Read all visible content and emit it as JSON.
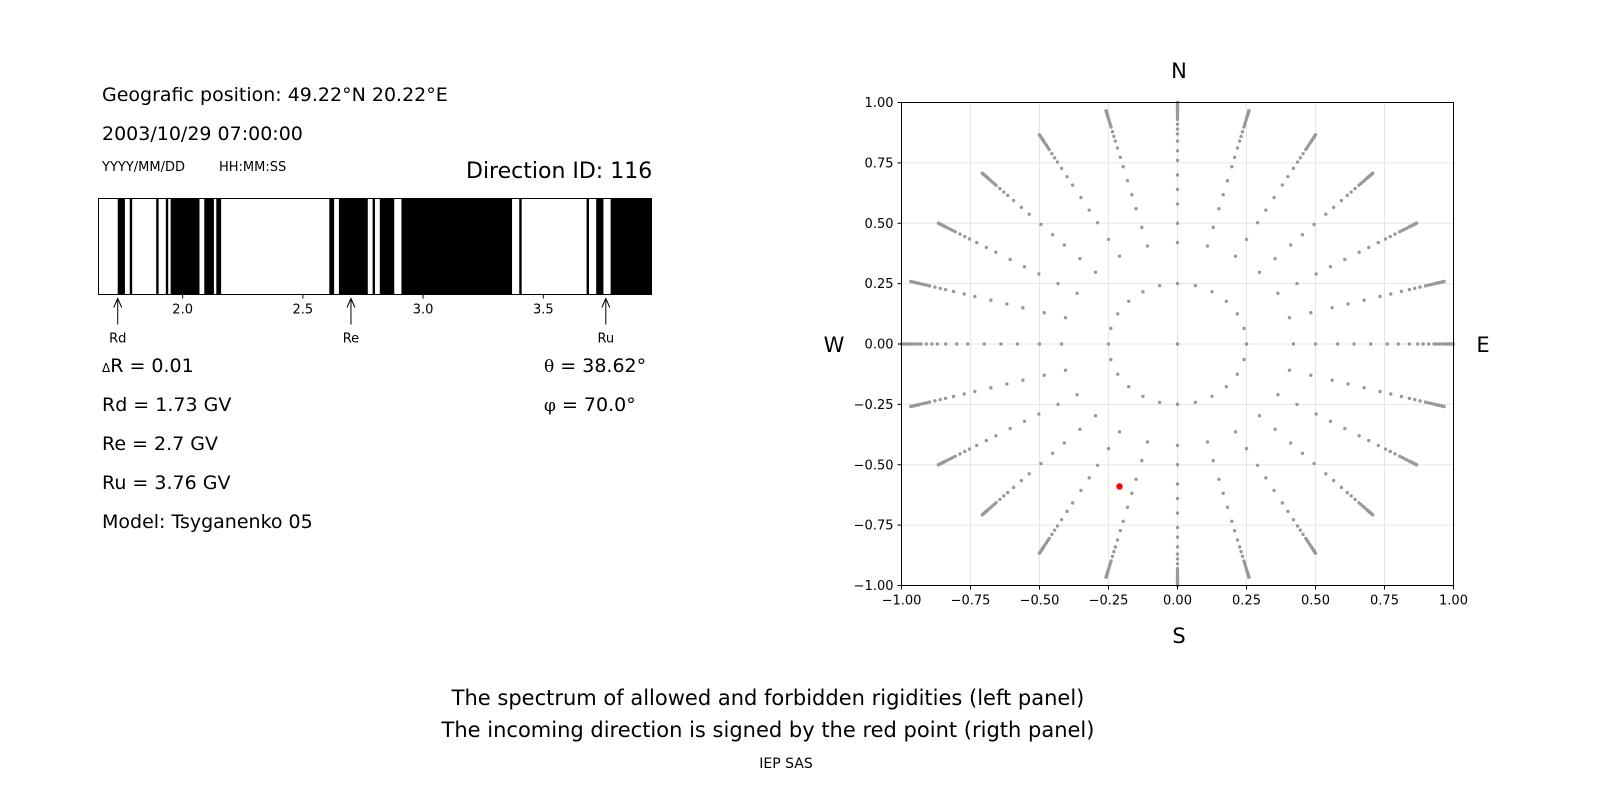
{
  "left_panel": {
    "position_line": "Geografic position: 49.22°N 20.22°E",
    "datetime": "2003/10/29 07:00:00",
    "date_format_label": "YYYY/MM/DD",
    "time_format_label": "HH:MM:SS",
    "direction_id": "Direction ID: 116",
    "delta_r_symbol": "Δ",
    "delta_r": "R = 0.01",
    "rd": "Rd = 1.73 GV",
    "re": "Re = 2.7 GV",
    "ru": "Ru = 3.76 GV",
    "model": "Model: Tsyganenko 05",
    "theta_symbol": "θ",
    "theta": "= 38.62°",
    "phi_symbol": "φ",
    "phi": "= 70.0°"
  },
  "footer": {
    "line1": "The spectrum of allowed and forbidden rigidities (left panel)",
    "line2": "The incoming direction is signed by the red point (rigth panel)",
    "credit": "IEP SAS"
  },
  "chart_data": [
    {
      "type": "spectrum",
      "xlim": [
        1.65,
        3.95
      ],
      "xticks": [
        "2.0",
        "2.5",
        "3.0",
        "3.5"
      ],
      "tick_values": [
        2.0,
        2.5,
        3.0,
        3.5
      ],
      "forbidden_intervals": [
        [
          1.73,
          1.76
        ],
        [
          1.78,
          1.79
        ],
        [
          1.89,
          1.9
        ],
        [
          1.93,
          1.94
        ],
        [
          1.95,
          2.07
        ],
        [
          2.09,
          2.13
        ],
        [
          2.14,
          2.16
        ],
        [
          2.61,
          2.63
        ],
        [
          2.65,
          2.77
        ],
        [
          2.79,
          2.8
        ],
        [
          2.82,
          2.88
        ],
        [
          2.91,
          3.37
        ],
        [
          3.4,
          3.41
        ],
        [
          3.68,
          3.69
        ],
        [
          3.72,
          3.75
        ],
        [
          3.78,
          3.95
        ]
      ],
      "markers": [
        {
          "label": "Rd",
          "value": 1.73
        },
        {
          "label": "Re",
          "value": 2.7
        },
        {
          "label": "Ru",
          "value": 3.76
        }
      ],
      "colors": {
        "forbidden": "#000000",
        "allowed": "#ffffff"
      }
    },
    {
      "type": "scatter",
      "xlim": [
        -1.0,
        1.0
      ],
      "ylim": [
        -1.0,
        1.0
      ],
      "xticks": [
        "−1.00",
        "−0.75",
        "−0.50",
        "−0.25",
        "0.00",
        "0.25",
        "0.50",
        "0.75",
        "1.00"
      ],
      "yticks": [
        "1.00",
        "0.75",
        "0.50",
        "0.25",
        "0.00",
        "−0.25",
        "−0.50",
        "−0.75",
        "−1.00"
      ],
      "tick_values": [
        -1.0,
        -0.75,
        -0.5,
        -0.25,
        0.0,
        0.25,
        0.5,
        0.75,
        1.0
      ],
      "grid": true,
      "compass": {
        "north": "N",
        "south": "S",
        "west": "W",
        "east": "E"
      },
      "grid_pattern": {
        "azimuth_step_deg": 15,
        "radii_sin_theta": [
          0.0,
          0.25,
          0.42,
          0.5,
          0.58,
          0.64,
          0.7,
          0.76,
          0.8,
          0.84,
          0.87,
          0.89,
          0.91,
          0.93,
          0.94,
          0.95,
          0.96,
          0.97,
          0.975,
          0.98,
          0.985,
          0.99,
          0.995,
          1.0
        ]
      },
      "grid_color": "#999999",
      "highlight": {
        "x": -0.21,
        "y": -0.59,
        "color": "#ff0000"
      }
    }
  ]
}
